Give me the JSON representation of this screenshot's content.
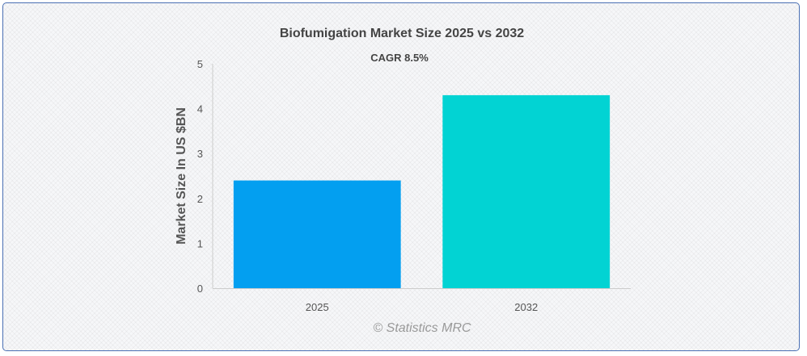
{
  "chart_data": {
    "type": "bar",
    "title": "Biofumigation Market Size 2025 vs 2032",
    "subtitle": "CAGR 8.5%",
    "xlabel": "",
    "ylabel": "Market Size In US $BN",
    "categories": [
      "2025",
      "2032"
    ],
    "values": [
      2.4,
      4.3
    ],
    "colors": [
      "#039ff0",
      "#02d3d3"
    ],
    "ylim": [
      0,
      5
    ],
    "yticks": [
      "0",
      "1",
      "2",
      "3",
      "4",
      "5"
    ],
    "grid": false,
    "legend": "none"
  },
  "credit": "© Statistics MRC"
}
